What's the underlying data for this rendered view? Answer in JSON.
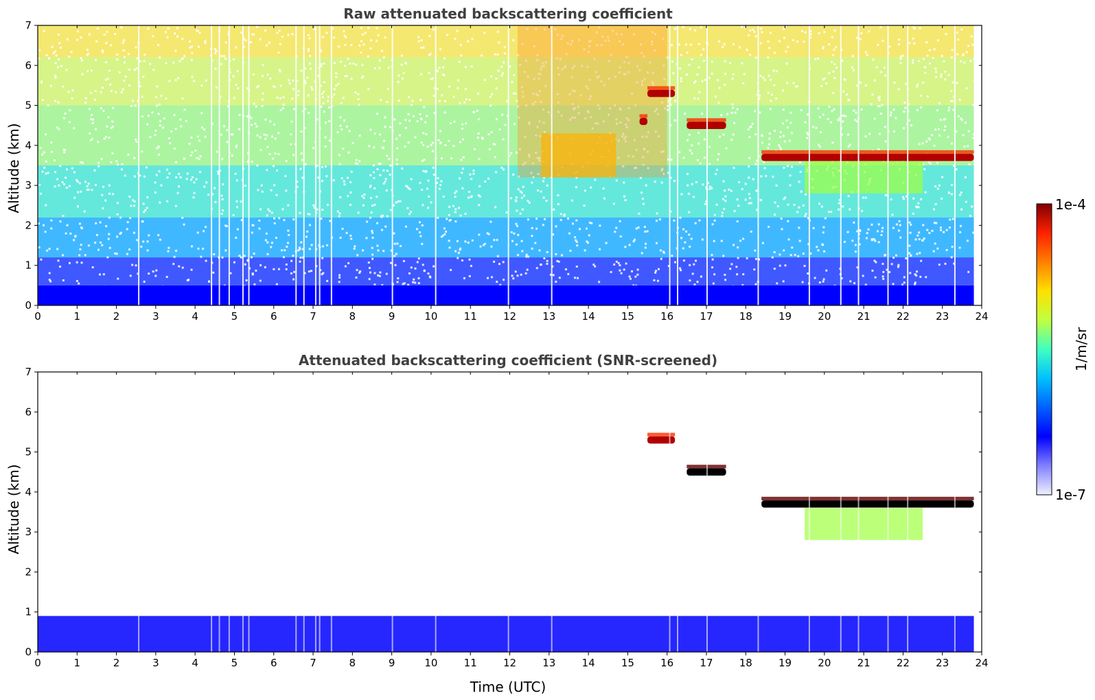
{
  "chart_data": [
    {
      "type": "heatmap",
      "title": "Raw attenuated backscattering coefficient",
      "xlabel": "",
      "ylabel": "Altitude (km)",
      "xlim": [
        0,
        24
      ],
      "ylim": [
        0,
        7
      ],
      "x_ticks": [
        "0",
        "1",
        "2",
        "3",
        "4",
        "5",
        "6",
        "7",
        "8",
        "9",
        "10",
        "11",
        "12",
        "13",
        "14",
        "15",
        "16",
        "17",
        "18",
        "19",
        "20",
        "21",
        "22",
        "23",
        "24"
      ],
      "y_ticks": [
        "0",
        "1",
        "2",
        "3",
        "4",
        "5",
        "6",
        "7"
      ],
      "data_end_time": 23.8,
      "features": [
        {
          "name": "boundary layer",
          "t_start": 0,
          "t_end": 23.8,
          "alt_top": 0.5,
          "level": "low"
        },
        {
          "name": "cloud layer",
          "t_start": 18.4,
          "t_end": 23.8,
          "alt": 3.7,
          "level": "high"
        },
        {
          "name": "cloud patch",
          "t_start": 15.5,
          "t_end": 16.2,
          "alt": 5.3,
          "level": "high"
        },
        {
          "name": "cloud patch",
          "t_start": 16.5,
          "t_end": 17.5,
          "alt": 4.5,
          "level": "high"
        },
        {
          "name": "cloud patch",
          "t_start": 15.3,
          "t_end": 15.5,
          "alt": 4.6,
          "level": "high"
        },
        {
          "name": "virga",
          "t_start": 19.5,
          "t_end": 22.5,
          "alt_range": [
            2.8,
            3.6
          ],
          "level": "mid"
        },
        {
          "name": "elevated aerosol",
          "t_start": 12.8,
          "t_end": 14.7,
          "alt_range": [
            3.2,
            4.3
          ],
          "level": "mid-high"
        }
      ]
    },
    {
      "type": "heatmap",
      "title": "Attenuated backscattering coefficient (SNR-screened)",
      "xlabel": "Time (UTC)",
      "ylabel": "Altitude (km)",
      "xlim": [
        0,
        24
      ],
      "ylim": [
        0,
        7
      ],
      "x_ticks": [
        "0",
        "1",
        "2",
        "3",
        "4",
        "5",
        "6",
        "7",
        "8",
        "9",
        "10",
        "11",
        "12",
        "13",
        "14",
        "15",
        "16",
        "17",
        "18",
        "19",
        "20",
        "21",
        "22",
        "23",
        "24"
      ],
      "y_ticks": [
        "0",
        "1",
        "2",
        "3",
        "4",
        "5",
        "6",
        "7"
      ],
      "data_end_time": 23.8,
      "features": [
        {
          "name": "boundary layer",
          "t_start": 0,
          "t_end": 23.8,
          "alt_top": 0.9,
          "level": "low"
        },
        {
          "name": "cloud layer",
          "t_start": 18.4,
          "t_end": 23.8,
          "alt": 3.7,
          "level": "saturated"
        },
        {
          "name": "cloud patch",
          "t_start": 15.5,
          "t_end": 16.2,
          "alt": 5.3,
          "level": "high"
        },
        {
          "name": "cloud patch",
          "t_start": 16.5,
          "t_end": 17.5,
          "alt": 4.5,
          "level": "saturated"
        },
        {
          "name": "virga",
          "t_start": 19.5,
          "t_end": 22.5,
          "alt_range": [
            2.8,
            3.6
          ],
          "level": "mid"
        }
      ]
    }
  ],
  "colorbar": {
    "label": "1/m/sr",
    "max_label": "1e-4",
    "min_label": "1e-7",
    "scale": "log",
    "colors": [
      "#f0f0ff",
      "#8080ff",
      "#0000ff",
      "#0060ff",
      "#00c0ff",
      "#40ffc0",
      "#c0ff40",
      "#ffe000",
      "#ff8000",
      "#ff2000",
      "#800000"
    ]
  }
}
